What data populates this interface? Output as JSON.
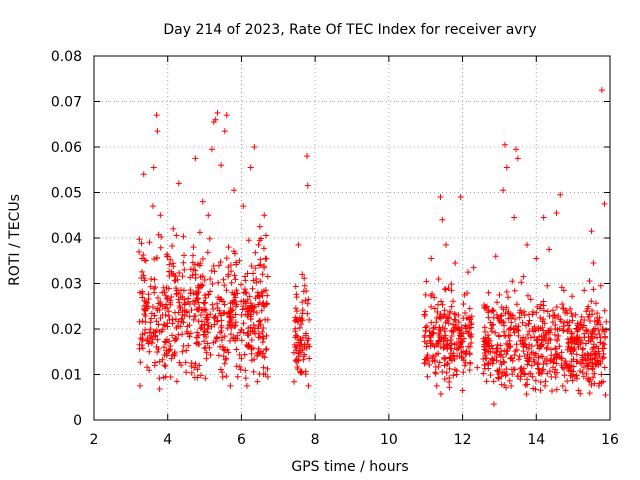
{
  "chart_data": {
    "type": "scatter",
    "title": "Day 214 of 2023, Rate Of TEC Index for receiver avry",
    "xlabel": "GPS time / hours",
    "ylabel": "ROTI / TECUs",
    "xlim": [
      2,
      16
    ],
    "ylim": [
      0,
      0.08
    ],
    "xticks": [
      2,
      4,
      6,
      8,
      10,
      12,
      14,
      16
    ],
    "yticks": [
      0,
      0.01,
      0.02,
      0.03,
      0.04,
      0.05,
      0.06,
      0.07,
      0.08
    ],
    "xtick_labels": [
      "2",
      "4",
      "6",
      "8",
      "10",
      "12",
      "14",
      "16"
    ],
    "ytick_labels": [
      "0",
      "0.01",
      "0.02",
      "0.03",
      "0.04",
      "0.05",
      "0.06",
      "0.07",
      "0.08"
    ],
    "grid": true,
    "marker": "plus",
    "color": "#ff0000",
    "series": [
      {
        "name": "ROTI",
        "points": [
          [
            3.25,
            0.0075
          ],
          [
            3.3,
            0.0355
          ],
          [
            3.35,
            0.054
          ],
          [
            3.4,
            0.024
          ],
          [
            3.45,
            0.018
          ],
          [
            3.5,
            0.015
          ],
          [
            3.55,
            0.031
          ],
          [
            3.6,
            0.047
          ],
          [
            3.62,
            0.0555
          ],
          [
            3.65,
            0.012
          ],
          [
            3.7,
            0.067
          ],
          [
            3.72,
            0.0635
          ],
          [
            3.75,
            0.021
          ],
          [
            3.78,
            0.0068
          ],
          [
            3.8,
            0.045
          ],
          [
            3.85,
            0.028
          ],
          [
            3.9,
            0.016
          ],
          [
            3.95,
            0.0095
          ],
          [
            4.0,
            0.036
          ],
          [
            4.05,
            0.022
          ],
          [
            4.1,
            0.0135
          ],
          [
            4.15,
            0.042
          ],
          [
            4.2,
            0.018
          ],
          [
            4.25,
            0.0085
          ],
          [
            4.3,
            0.052
          ],
          [
            4.35,
            0.027
          ],
          [
            4.4,
            0.015
          ],
          [
            4.45,
            0.033
          ],
          [
            4.5,
            0.0105
          ],
          [
            4.55,
            0.019
          ],
          [
            4.6,
            0.0255
          ],
          [
            4.65,
            0.0125
          ],
          [
            4.7,
            0.038
          ],
          [
            4.75,
            0.0575
          ],
          [
            4.8,
            0.017
          ],
          [
            4.85,
            0.029
          ],
          [
            4.9,
            0.0098
          ],
          [
            4.95,
            0.048
          ],
          [
            5.0,
            0.021
          ],
          [
            5.05,
            0.0135
          ],
          [
            5.1,
            0.045
          ],
          [
            5.15,
            0.031
          ],
          [
            5.2,
            0.0595
          ],
          [
            5.25,
            0.0655
          ],
          [
            5.3,
            0.066
          ],
          [
            5.35,
            0.0675
          ],
          [
            5.4,
            0.024
          ],
          [
            5.45,
            0.056
          ],
          [
            5.5,
            0.016
          ],
          [
            5.55,
            0.0635
          ],
          [
            5.6,
            0.067
          ],
          [
            5.65,
            0.038
          ],
          [
            5.7,
            0.0075
          ],
          [
            5.75,
            0.028
          ],
          [
            5.8,
            0.0505
          ],
          [
            5.85,
            0.0215
          ],
          [
            5.9,
            0.0095
          ],
          [
            5.95,
            0.035
          ],
          [
            6.0,
            0.0135
          ],
          [
            6.05,
            0.047
          ],
          [
            6.1,
            0.026
          ],
          [
            6.15,
            0.0075
          ],
          [
            6.2,
            0.0395
          ],
          [
            6.25,
            0.0555
          ],
          [
            6.3,
            0.0195
          ],
          [
            6.35,
            0.06
          ],
          [
            6.4,
            0.031
          ],
          [
            6.45,
            0.0145
          ],
          [
            6.5,
            0.0425
          ],
          [
            6.55,
            0.024
          ],
          [
            6.6,
            0.0115
          ],
          [
            6.62,
            0.045
          ],
          [
            6.65,
            0.0355
          ],
          [
            6.68,
            0.0185
          ],
          [
            7.45,
            0.0165
          ],
          [
            7.5,
            0.027
          ],
          [
            7.55,
            0.0385
          ],
          [
            7.6,
            0.0105
          ],
          [
            7.62,
            0.022
          ],
          [
            7.65,
            0.032
          ],
          [
            7.7,
            0.014
          ],
          [
            7.72,
            0.0295
          ],
          [
            7.75,
            0.019
          ],
          [
            7.78,
            0.058
          ],
          [
            7.8,
            0.0515
          ],
          [
            7.82,
            0.0075
          ],
          [
            11.0,
            0.0275
          ],
          [
            11.05,
            0.0095
          ],
          [
            11.1,
            0.0195
          ],
          [
            11.15,
            0.0355
          ],
          [
            11.2,
            0.014
          ],
          [
            11.25,
            0.0245
          ],
          [
            11.3,
            0.0075
          ],
          [
            11.35,
            0.031
          ],
          [
            11.4,
            0.049
          ],
          [
            11.45,
            0.044
          ],
          [
            11.5,
            0.018
          ],
          [
            11.55,
            0.0385
          ],
          [
            11.6,
            0.0125
          ],
          [
            11.65,
            0.0235
          ],
          [
            11.7,
            0.0285
          ],
          [
            11.75,
            0.0098
          ],
          [
            11.8,
            0.0345
          ],
          [
            11.85,
            0.0155
          ],
          [
            11.9,
            0.0215
          ],
          [
            11.95,
            0.049
          ],
          [
            12.0,
            0.0065
          ],
          [
            12.05,
            0.0275
          ],
          [
            12.1,
            0.0145
          ],
          [
            12.15,
            0.0325
          ],
          [
            12.2,
            0.0185
          ],
          [
            12.3,
            0.0335
          ],
          [
            12.4,
            0.0115
          ],
          [
            12.6,
            0.0155
          ],
          [
            12.65,
            0.0085
          ],
          [
            12.7,
            0.0225
          ],
          [
            12.75,
            0.0125
          ],
          [
            12.8,
            0.0195
          ],
          [
            12.85,
            0.0035
          ],
          [
            12.9,
            0.036
          ],
          [
            12.95,
            0.0165
          ],
          [
            13.0,
            0.0275
          ],
          [
            13.05,
            0.0095
          ],
          [
            13.1,
            0.0505
          ],
          [
            13.15,
            0.0605
          ],
          [
            13.2,
            0.0555
          ],
          [
            13.25,
            0.0185
          ],
          [
            13.3,
            0.0135
          ],
          [
            13.35,
            0.0305
          ],
          [
            13.4,
            0.0445
          ],
          [
            13.45,
            0.0595
          ],
          [
            13.5,
            0.0575
          ],
          [
            13.55,
            0.0225
          ],
          [
            13.6,
            0.0105
          ],
          [
            13.65,
            0.0315
          ],
          [
            13.7,
            0.0165
          ],
          [
            13.75,
            0.0385
          ],
          [
            13.8,
            0.0135
          ],
          [
            13.85,
            0.0265
          ],
          [
            13.9,
            0.0095
          ],
          [
            13.95,
            0.0205
          ],
          [
            14.0,
            0.0355
          ],
          [
            14.05,
            0.0125
          ],
          [
            14.1,
            0.0245
          ],
          [
            14.15,
            0.0175
          ],
          [
            14.2,
            0.0445
          ],
          [
            14.25,
            0.0085
          ],
          [
            14.3,
            0.0295
          ],
          [
            14.35,
            0.0375
          ],
          [
            14.4,
            0.0155
          ],
          [
            14.45,
            0.0215
          ],
          [
            14.5,
            0.0105
          ],
          [
            14.55,
            0.0455
          ],
          [
            14.6,
            0.0185
          ],
          [
            14.65,
            0.0495
          ],
          [
            14.7,
            0.0135
          ],
          [
            14.75,
            0.0285
          ],
          [
            14.8,
            0.0065
          ],
          [
            14.85,
            0.0195
          ],
          [
            14.9,
            0.0115
          ],
          [
            14.95,
            0.0235
          ],
          [
            15.0,
            0.0155
          ],
          [
            15.05,
            0.0095
          ],
          [
            15.1,
            0.0175
          ],
          [
            15.15,
            0.0065
          ],
          [
            15.2,
            0.0215
          ],
          [
            15.25,
            0.0105
          ],
          [
            15.3,
            0.0285
          ],
          [
            15.35,
            0.0125
          ],
          [
            15.4,
            0.0195
          ],
          [
            15.45,
            0.0085
          ],
          [
            15.5,
            0.0415
          ],
          [
            15.55,
            0.0345
          ],
          [
            15.6,
            0.0145
          ],
          [
            15.65,
            0.0235
          ],
          [
            15.7,
            0.0075
          ],
          [
            15.75,
            0.0295
          ],
          [
            15.78,
            0.0725
          ],
          [
            15.8,
            0.0135
          ],
          [
            15.85,
            0.0475
          ],
          [
            15.88,
            0.0055
          ]
        ],
        "clusters": [
          {
            "x_range": [
              3.22,
              6.72
            ],
            "y_range": [
              0.006,
              0.045
            ]
          },
          {
            "x_range": [
              7.42,
              7.85
            ],
            "y_range": [
              0.007,
              0.035
            ]
          },
          {
            "x_range": [
              10.95,
              12.25
            ],
            "y_range": [
              0.005,
              0.033
            ]
          },
          {
            "x_range": [
              12.55,
              15.9
            ],
            "y_range": [
              0.004,
              0.032
            ]
          }
        ]
      }
    ]
  }
}
